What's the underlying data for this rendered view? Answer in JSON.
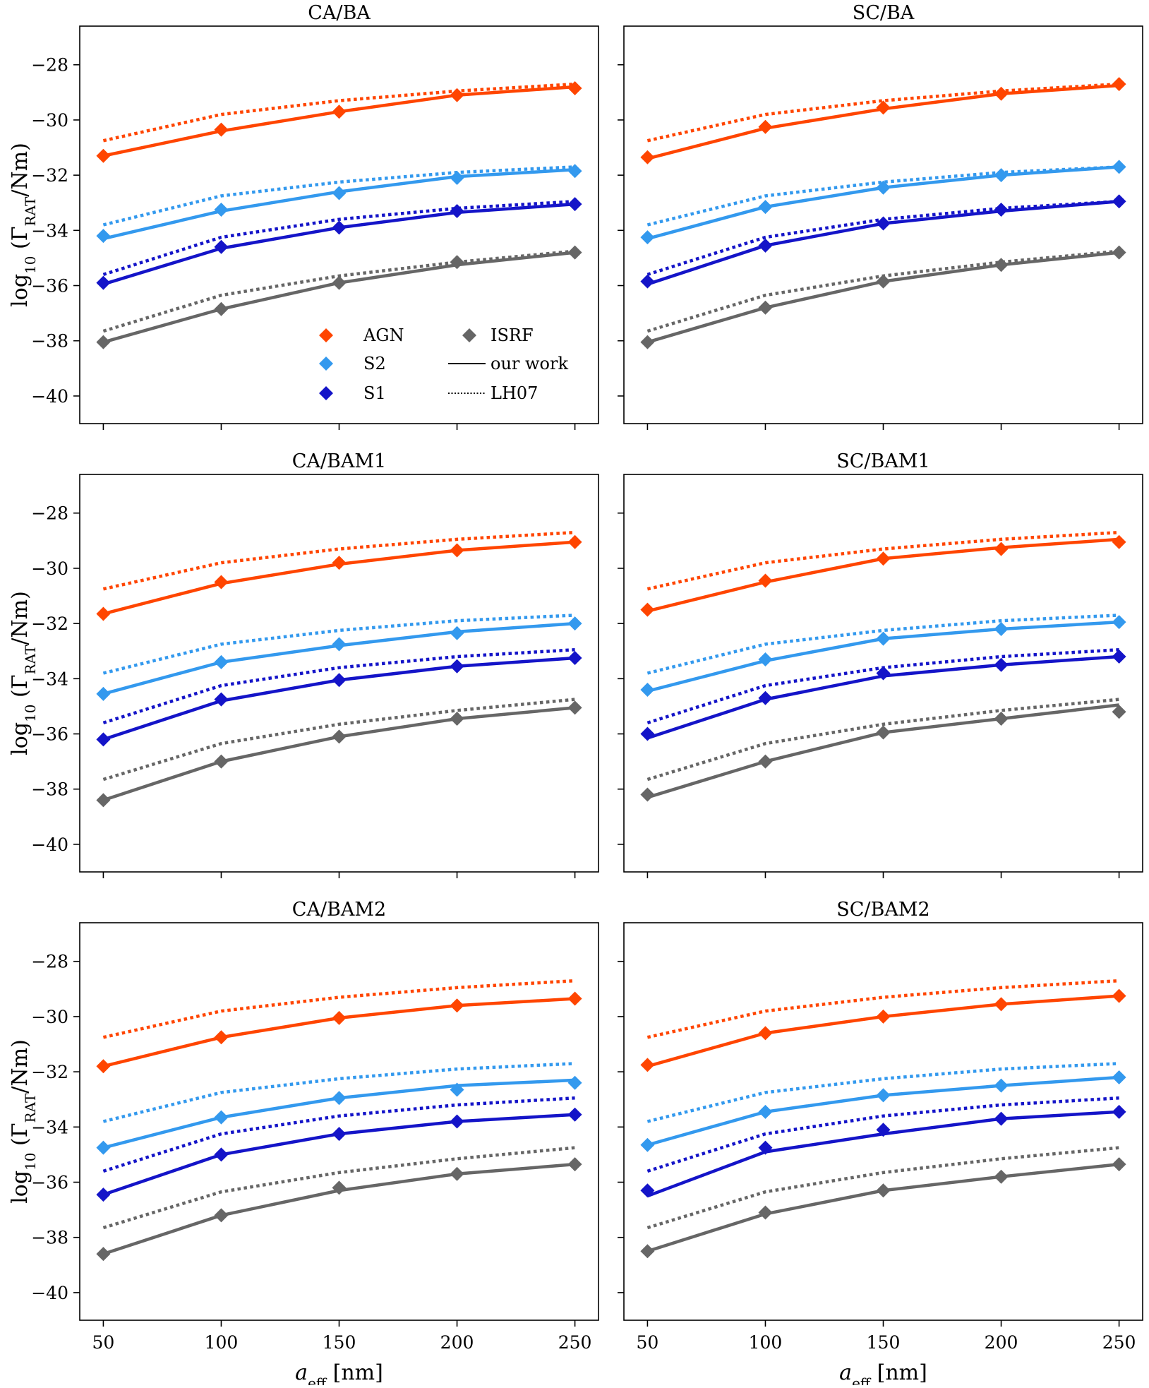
{
  "figure": {
    "ylabel_prefix": "log",
    "ylabel_sub": "10",
    "ylabel_paren_open": " (Γ",
    "ylabel_gamma_sub": "RAT",
    "ylabel_unit": "/Nm)",
    "xlabel_var": "a",
    "xlabel_sub": "eff",
    "xlabel_unit": " [nm]"
  },
  "legend": {
    "entries": [
      {
        "label": "AGN",
        "kind": "marker",
        "color": "#ff4500"
      },
      {
        "label": "S2",
        "kind": "marker",
        "color": "#3399ee"
      },
      {
        "label": "S1",
        "kind": "marker",
        "color": "#1414c8"
      },
      {
        "label": "ISRF",
        "kind": "marker",
        "color": "#666666"
      },
      {
        "label": "our work",
        "kind": "solid",
        "color": "#000000"
      },
      {
        "label": "LH07",
        "kind": "dotted",
        "color": "#000000"
      }
    ]
  },
  "chart_data": [
    {
      "type": "line",
      "title": "CA/BA",
      "x": [
        50,
        100,
        150,
        200,
        250
      ],
      "xticks": [
        50,
        100,
        150,
        200,
        250
      ],
      "xlim": [
        40,
        260
      ],
      "ylim": [
        -41,
        -26.6
      ],
      "yticks": [
        -28,
        -30,
        -32,
        -34,
        -36,
        -38,
        -40
      ],
      "grid": false,
      "legend": "lower-center",
      "series": [
        {
          "name": "AGN",
          "color": "#ff4500",
          "ours_line": [
            -31.3,
            -30.4,
            -29.7,
            -29.1,
            -28.8
          ],
          "ours_markers": [
            -31.3,
            -30.35,
            -29.7,
            -29.1,
            -28.85
          ],
          "lh07": [
            -30.75,
            -29.8,
            -29.3,
            -28.95,
            -28.7
          ]
        },
        {
          "name": "S2",
          "color": "#3399ee",
          "ours_line": [
            -34.3,
            -33.3,
            -32.6,
            -32.05,
            -31.8
          ],
          "ours_markers": [
            -34.2,
            -33.25,
            -32.65,
            -32.1,
            -31.85
          ],
          "lh07": [
            -33.8,
            -32.75,
            -32.25,
            -31.9,
            -31.7
          ]
        },
        {
          "name": "S1",
          "color": "#1414c8",
          "ours_line": [
            -35.95,
            -34.65,
            -33.9,
            -33.35,
            -33.05
          ],
          "ours_markers": [
            -35.9,
            -34.6,
            -33.9,
            -33.3,
            -33.05
          ],
          "lh07": [
            -35.6,
            -34.25,
            -33.6,
            -33.2,
            -32.95
          ]
        },
        {
          "name": "ISRF",
          "color": "#666666",
          "ours_line": [
            -38.05,
            -36.85,
            -35.9,
            -35.25,
            -34.8
          ],
          "ours_markers": [
            -38.05,
            -36.85,
            -35.9,
            -35.15,
            -34.8
          ],
          "lh07": [
            -37.65,
            -36.35,
            -35.65,
            -35.15,
            -34.75
          ]
        }
      ]
    },
    {
      "type": "line",
      "title": "SC/BA",
      "x": [
        50,
        100,
        150,
        200,
        250
      ],
      "xticks": [
        50,
        100,
        150,
        200,
        250
      ],
      "xlim": [
        40,
        260
      ],
      "ylim": [
        -41,
        -26.6
      ],
      "yticks": [
        -28,
        -30,
        -32,
        -34,
        -36,
        -38,
        -40
      ],
      "grid": false,
      "series": [
        {
          "name": "AGN",
          "color": "#ff4500",
          "ours_line": [
            -31.4,
            -30.3,
            -29.6,
            -29.05,
            -28.75
          ],
          "ours_markers": [
            -31.35,
            -30.25,
            -29.55,
            -29.05,
            -28.7
          ],
          "lh07": [
            -30.75,
            -29.8,
            -29.3,
            -28.95,
            -28.7
          ]
        },
        {
          "name": "S2",
          "color": "#3399ee",
          "ours_line": [
            -34.3,
            -33.15,
            -32.45,
            -32.0,
            -31.7
          ],
          "ours_markers": [
            -34.25,
            -33.15,
            -32.45,
            -32.0,
            -31.7
          ],
          "lh07": [
            -33.8,
            -32.75,
            -32.25,
            -31.9,
            -31.7
          ]
        },
        {
          "name": "S1",
          "color": "#1414c8",
          "ours_line": [
            -35.95,
            -34.55,
            -33.75,
            -33.3,
            -32.95
          ],
          "ours_markers": [
            -35.85,
            -34.55,
            -33.75,
            -33.25,
            -32.95
          ],
          "lh07": [
            -35.6,
            -34.25,
            -33.6,
            -33.2,
            -32.95
          ]
        },
        {
          "name": "ISRF",
          "color": "#666666",
          "ours_line": [
            -38.05,
            -36.8,
            -35.85,
            -35.25,
            -34.8
          ],
          "ours_markers": [
            -38.05,
            -36.8,
            -35.85,
            -35.25,
            -34.8
          ],
          "lh07": [
            -37.65,
            -36.35,
            -35.65,
            -35.15,
            -34.75
          ]
        }
      ]
    },
    {
      "type": "line",
      "title": "CA/BAM1",
      "x": [
        50,
        100,
        150,
        200,
        250
      ],
      "xticks": [
        50,
        100,
        150,
        200,
        250
      ],
      "xlim": [
        40,
        260
      ],
      "ylim": [
        -41,
        -26.6
      ],
      "yticks": [
        -28,
        -30,
        -32,
        -34,
        -36,
        -38,
        -40
      ],
      "grid": false,
      "series": [
        {
          "name": "AGN",
          "color": "#ff4500",
          "ours_line": [
            -31.65,
            -30.55,
            -29.85,
            -29.35,
            -29.05
          ],
          "ours_markers": [
            -31.65,
            -30.5,
            -29.8,
            -29.35,
            -29.05
          ],
          "lh07": [
            -30.75,
            -29.8,
            -29.3,
            -28.95,
            -28.7
          ]
        },
        {
          "name": "S2",
          "color": "#3399ee",
          "ours_line": [
            -34.55,
            -33.4,
            -32.8,
            -32.3,
            -32.0
          ],
          "ours_markers": [
            -34.55,
            -33.4,
            -32.75,
            -32.35,
            -32.0
          ],
          "lh07": [
            -33.8,
            -32.75,
            -32.25,
            -31.9,
            -31.7
          ]
        },
        {
          "name": "S1",
          "color": "#1414c8",
          "ours_line": [
            -36.2,
            -34.8,
            -34.05,
            -33.55,
            -33.25
          ],
          "ours_markers": [
            -36.2,
            -34.75,
            -34.05,
            -33.55,
            -33.25
          ],
          "lh07": [
            -35.6,
            -34.25,
            -33.6,
            -33.2,
            -32.95
          ]
        },
        {
          "name": "ISRF",
          "color": "#666666",
          "ours_line": [
            -38.4,
            -37.0,
            -36.1,
            -35.45,
            -35.05
          ],
          "ours_markers": [
            -38.4,
            -37.0,
            -36.1,
            -35.45,
            -35.05
          ],
          "lh07": [
            -37.65,
            -36.35,
            -35.65,
            -35.15,
            -34.75
          ]
        }
      ]
    },
    {
      "type": "line",
      "title": "SC/BAM1",
      "x": [
        50,
        100,
        150,
        200,
        250
      ],
      "xticks": [
        50,
        100,
        150,
        200,
        250
      ],
      "xlim": [
        40,
        260
      ],
      "ylim": [
        -41,
        -26.6
      ],
      "yticks": [
        -28,
        -30,
        -32,
        -34,
        -36,
        -38,
        -40
      ],
      "grid": false,
      "series": [
        {
          "name": "AGN",
          "color": "#ff4500",
          "ours_line": [
            -31.55,
            -30.5,
            -29.65,
            -29.25,
            -28.95
          ],
          "ours_markers": [
            -31.5,
            -30.45,
            -29.65,
            -29.3,
            -29.05
          ],
          "lh07": [
            -30.75,
            -29.8,
            -29.3,
            -28.95,
            -28.7
          ]
        },
        {
          "name": "S2",
          "color": "#3399ee",
          "ours_line": [
            -34.45,
            -33.35,
            -32.55,
            -32.2,
            -31.95
          ],
          "ours_markers": [
            -34.4,
            -33.3,
            -32.55,
            -32.2,
            -31.95
          ],
          "lh07": [
            -33.8,
            -32.75,
            -32.25,
            -31.9,
            -31.7
          ]
        },
        {
          "name": "S1",
          "color": "#1414c8",
          "ours_line": [
            -36.15,
            -34.75,
            -33.9,
            -33.5,
            -33.2
          ],
          "ours_markers": [
            -36.0,
            -34.7,
            -33.8,
            -33.5,
            -33.2
          ],
          "lh07": [
            -35.6,
            -34.25,
            -33.6,
            -33.2,
            -32.95
          ]
        },
        {
          "name": "ISRF",
          "color": "#666666",
          "ours_line": [
            -38.3,
            -37.0,
            -35.95,
            -35.45,
            -34.95
          ],
          "ours_markers": [
            -38.2,
            -37.0,
            -35.95,
            -35.45,
            -35.2
          ],
          "lh07": [
            -37.65,
            -36.35,
            -35.65,
            -35.15,
            -34.75
          ]
        }
      ]
    },
    {
      "type": "line",
      "title": "CA/BAM2",
      "x": [
        50,
        100,
        150,
        200,
        250
      ],
      "xticks": [
        50,
        100,
        150,
        200,
        250
      ],
      "xlim": [
        40,
        260
      ],
      "ylim": [
        -41,
        -26.6
      ],
      "yticks": [
        -28,
        -30,
        -32,
        -34,
        -36,
        -38,
        -40
      ],
      "grid": false,
      "series": [
        {
          "name": "AGN",
          "color": "#ff4500",
          "ours_line": [
            -31.8,
            -30.75,
            -30.05,
            -29.6,
            -29.35
          ],
          "ours_markers": [
            -31.8,
            -30.75,
            -30.05,
            -29.6,
            -29.35
          ],
          "lh07": [
            -30.75,
            -29.8,
            -29.3,
            -28.95,
            -28.7
          ]
        },
        {
          "name": "S2",
          "color": "#3399ee",
          "ours_line": [
            -34.75,
            -33.65,
            -32.95,
            -32.5,
            -32.3
          ],
          "ours_markers": [
            -34.75,
            -33.65,
            -32.95,
            -32.65,
            -32.4
          ],
          "lh07": [
            -33.8,
            -32.75,
            -32.25,
            -31.9,
            -31.7
          ]
        },
        {
          "name": "S1",
          "color": "#1414c8",
          "ours_line": [
            -36.45,
            -35.0,
            -34.25,
            -33.8,
            -33.55
          ],
          "ours_markers": [
            -36.45,
            -35.0,
            -34.25,
            -33.8,
            -33.55
          ],
          "lh07": [
            -35.6,
            -34.25,
            -33.6,
            -33.2,
            -32.95
          ]
        },
        {
          "name": "ISRF",
          "color": "#666666",
          "ours_line": [
            -38.6,
            -37.2,
            -36.3,
            -35.7,
            -35.35
          ],
          "ours_markers": [
            -38.6,
            -37.2,
            -36.2,
            -35.7,
            -35.35
          ],
          "lh07": [
            -37.65,
            -36.35,
            -35.65,
            -35.15,
            -34.75
          ]
        }
      ]
    },
    {
      "type": "line",
      "title": "SC/BAM2",
      "x": [
        50,
        100,
        150,
        200,
        250
      ],
      "xticks": [
        50,
        100,
        150,
        200,
        250
      ],
      "xlim": [
        40,
        260
      ],
      "ylim": [
        -41,
        -26.6
      ],
      "yticks": [
        -28,
        -30,
        -32,
        -34,
        -36,
        -38,
        -40
      ],
      "grid": false,
      "series": [
        {
          "name": "AGN",
          "color": "#ff4500",
          "ours_line": [
            -31.8,
            -30.6,
            -30.0,
            -29.55,
            -29.25
          ],
          "ours_markers": [
            -31.75,
            -30.6,
            -30.0,
            -29.55,
            -29.25
          ],
          "lh07": [
            -30.75,
            -29.8,
            -29.3,
            -28.95,
            -28.7
          ]
        },
        {
          "name": "S2",
          "color": "#3399ee",
          "ours_line": [
            -34.65,
            -33.45,
            -32.85,
            -32.5,
            -32.2
          ],
          "ours_markers": [
            -34.65,
            -33.45,
            -32.85,
            -32.5,
            -32.2
          ],
          "lh07": [
            -33.8,
            -32.75,
            -32.25,
            -31.9,
            -31.7
          ]
        },
        {
          "name": "S1",
          "color": "#1414c8",
          "ours_line": [
            -36.5,
            -34.9,
            -34.25,
            -33.7,
            -33.45
          ],
          "ours_markers": [
            -36.3,
            -34.75,
            -34.1,
            -33.7,
            -33.45
          ],
          "lh07": [
            -35.6,
            -34.25,
            -33.6,
            -33.2,
            -32.95
          ]
        },
        {
          "name": "ISRF",
          "color": "#666666",
          "ours_line": [
            -38.5,
            -37.15,
            -36.3,
            -35.8,
            -35.35
          ],
          "ours_markers": [
            -38.5,
            -37.1,
            -36.3,
            -35.8,
            -35.35
          ],
          "lh07": [
            -37.65,
            -36.35,
            -35.65,
            -35.15,
            -34.75
          ]
        }
      ]
    }
  ]
}
